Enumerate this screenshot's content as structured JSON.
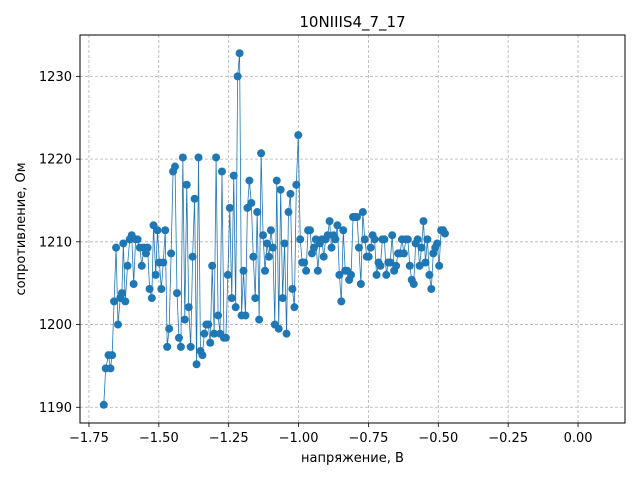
{
  "chart_data": {
    "type": "line",
    "title": "10NIIIS4_7_17",
    "xlabel": "напряжение, В",
    "ylabel": "сопротивление, Ом",
    "xlim": [
      -1.782,
      0.168
    ],
    "ylim": [
      1188.1,
      1235.0
    ],
    "xticks": [
      -1.75,
      -1.5,
      -1.25,
      -1.0,
      -0.75,
      -0.5,
      -0.25,
      0.0
    ],
    "xtick_labels": [
      "−1.75",
      "−1.50",
      "−1.25",
      "−1.00",
      "−0.75",
      "−0.50",
      "−0.25",
      "0.00"
    ],
    "yticks": [
      1190,
      1200,
      1210,
      1220,
      1230
    ],
    "ytick_labels": [
      "1190",
      "1200",
      "1210",
      "1220",
      "1230"
    ],
    "grid": true,
    "series": [
      {
        "color": "#1f77b4",
        "marker": "circle",
        "points": [
          [
            -1.697,
            1190.3
          ],
          [
            -1.69,
            1194.7
          ],
          [
            -1.68,
            1196.3
          ],
          [
            -1.673,
            1194.7
          ],
          [
            -1.667,
            1196.3
          ],
          [
            -1.66,
            1202.8
          ],
          [
            -1.653,
            1209.3
          ],
          [
            -1.646,
            1200.0
          ],
          [
            -1.638,
            1203.2
          ],
          [
            -1.632,
            1203.8
          ],
          [
            -1.627,
            1209.8
          ],
          [
            -1.62,
            1202.8
          ],
          [
            -1.612,
            1207.1
          ],
          [
            -1.604,
            1210.3
          ],
          [
            -1.597,
            1210.8
          ],
          [
            -1.59,
            1204.9
          ],
          [
            -1.583,
            1210.3
          ],
          [
            -1.576,
            1210.3
          ],
          [
            -1.568,
            1209.3
          ],
          [
            -1.561,
            1207.1
          ],
          [
            -1.554,
            1209.3
          ],
          [
            -1.546,
            1208.6
          ],
          [
            -1.54,
            1209.3
          ],
          [
            -1.533,
            1204.3
          ],
          [
            -1.525,
            1203.2
          ],
          [
            -1.519,
            1212.0
          ],
          [
            -1.511,
            1206.0
          ],
          [
            -1.505,
            1211.4
          ],
          [
            -1.498,
            1207.5
          ],
          [
            -1.491,
            1204.3
          ],
          [
            -1.484,
            1207.5
          ],
          [
            -1.477,
            1211.4
          ],
          [
            -1.47,
            1197.3
          ],
          [
            -1.463,
            1199.5
          ],
          [
            -1.456,
            1208.6
          ],
          [
            -1.449,
            1218.5
          ],
          [
            -1.442,
            1219.1
          ],
          [
            -1.435,
            1203.8
          ],
          [
            -1.428,
            1198.4
          ],
          [
            -1.421,
            1197.3
          ],
          [
            -1.414,
            1220.2
          ],
          [
            -1.407,
            1200.6
          ],
          [
            -1.4,
            1216.9
          ],
          [
            -1.393,
            1202.1
          ],
          [
            -1.386,
            1197.3
          ],
          [
            -1.379,
            1208.2
          ],
          [
            -1.372,
            1215.2
          ],
          [
            -1.365,
            1195.2
          ],
          [
            -1.358,
            1220.2
          ],
          [
            -1.351,
            1196.8
          ],
          [
            -1.344,
            1196.3
          ],
          [
            -1.337,
            1198.9
          ],
          [
            -1.33,
            1200.0
          ],
          [
            -1.323,
            1200.0
          ],
          [
            -1.316,
            1197.8
          ],
          [
            -1.309,
            1207.1
          ],
          [
            -1.302,
            1198.9
          ],
          [
            -1.295,
            1220.2
          ],
          [
            -1.288,
            1201.1
          ],
          [
            -1.281,
            1198.9
          ],
          [
            -1.274,
            1218.5
          ],
          [
            -1.267,
            1198.4
          ],
          [
            -1.26,
            1198.4
          ],
          [
            -1.253,
            1206.0
          ],
          [
            -1.246,
            1214.1
          ],
          [
            -1.239,
            1203.2
          ],
          [
            -1.232,
            1218.0
          ],
          [
            -1.225,
            1202.1
          ],
          [
            -1.218,
            1230.0
          ],
          [
            -1.211,
            1232.8
          ],
          [
            -1.204,
            1201.1
          ],
          [
            -1.197,
            1206.5
          ],
          [
            -1.19,
            1201.1
          ],
          [
            -1.183,
            1214.1
          ],
          [
            -1.176,
            1217.4
          ],
          [
            -1.169,
            1214.7
          ],
          [
            -1.162,
            1208.2
          ],
          [
            -1.155,
            1203.2
          ],
          [
            -1.148,
            1213.6
          ],
          [
            -1.141,
            1200.6
          ],
          [
            -1.134,
            1220.7
          ],
          [
            -1.127,
            1210.8
          ],
          [
            -1.12,
            1206.5
          ],
          [
            -1.113,
            1209.8
          ],
          [
            -1.106,
            1208.2
          ],
          [
            -1.099,
            1211.4
          ],
          [
            -1.092,
            1209.3
          ],
          [
            -1.085,
            1200.0
          ],
          [
            -1.078,
            1217.4
          ],
          [
            -1.071,
            1199.5
          ],
          [
            -1.064,
            1216.3
          ],
          [
            -1.057,
            1203.2
          ],
          [
            -1.05,
            1209.8
          ],
          [
            -1.043,
            1198.9
          ],
          [
            -1.036,
            1213.6
          ],
          [
            -1.029,
            1215.8
          ],
          [
            -1.022,
            1204.3
          ],
          [
            -1.015,
            1202.1
          ],
          [
            -1.008,
            1216.9
          ],
          [
            -1.001,
            1222.9
          ],
          [
            -0.994,
            1210.3
          ],
          [
            -0.987,
            1207.5
          ],
          [
            -0.98,
            1207.5
          ],
          [
            -0.973,
            1206.5
          ],
          [
            -0.966,
            1211.4
          ],
          [
            -0.959,
            1211.4
          ],
          [
            -0.952,
            1208.6
          ],
          [
            -0.945,
            1209.3
          ],
          [
            -0.938,
            1210.3
          ],
          [
            -0.931,
            1206.5
          ],
          [
            -0.924,
            1209.8
          ],
          [
            -0.917,
            1210.3
          ],
          [
            -0.91,
            1208.2
          ],
          [
            -0.903,
            1210.3
          ],
          [
            -0.896,
            1210.8
          ],
          [
            -0.889,
            1212.5
          ],
          [
            -0.882,
            1209.3
          ],
          [
            -0.875,
            1210.8
          ],
          [
            -0.868,
            1210.3
          ],
          [
            -0.861,
            1212.0
          ],
          [
            -0.854,
            1206.0
          ],
          [
            -0.847,
            1202.8
          ],
          [
            -0.84,
            1211.4
          ],
          [
            -0.833,
            1206.5
          ],
          [
            -0.826,
            1206.5
          ],
          [
            -0.819,
            1205.4
          ],
          [
            -0.812,
            1206.0
          ],
          [
            -0.805,
            1213.0
          ],
          [
            -0.798,
            1213.0
          ],
          [
            -0.791,
            1213.0
          ],
          [
            -0.784,
            1209.3
          ],
          [
            -0.777,
            1204.9
          ],
          [
            -0.77,
            1213.6
          ],
          [
            -0.763,
            1210.3
          ],
          [
            -0.756,
            1208.2
          ],
          [
            -0.749,
            1208.2
          ],
          [
            -0.742,
            1209.3
          ],
          [
            -0.735,
            1210.8
          ],
          [
            -0.728,
            1210.3
          ],
          [
            -0.721,
            1206.0
          ],
          [
            -0.714,
            1207.5
          ],
          [
            -0.707,
            1207.1
          ],
          [
            -0.7,
            1210.3
          ],
          [
            -0.693,
            1210.3
          ],
          [
            -0.686,
            1206.0
          ],
          [
            -0.679,
            1207.5
          ],
          [
            -0.672,
            1207.5
          ],
          [
            -0.665,
            1210.8
          ],
          [
            -0.658,
            1206.5
          ],
          [
            -0.651,
            1207.1
          ],
          [
            -0.644,
            1208.6
          ],
          [
            -0.637,
            1208.6
          ],
          [
            -0.63,
            1210.3
          ],
          [
            -0.623,
            1208.6
          ],
          [
            -0.616,
            1210.3
          ],
          [
            -0.609,
            1210.3
          ],
          [
            -0.602,
            1207.1
          ],
          [
            -0.595,
            1205.4
          ],
          [
            -0.588,
            1204.9
          ],
          [
            -0.581,
            1209.8
          ],
          [
            -0.574,
            1210.3
          ],
          [
            -0.567,
            1207.1
          ],
          [
            -0.56,
            1209.3
          ],
          [
            -0.553,
            1212.5
          ],
          [
            -0.546,
            1207.5
          ],
          [
            -0.539,
            1210.3
          ],
          [
            -0.532,
            1206.0
          ],
          [
            -0.525,
            1204.3
          ],
          [
            -0.518,
            1208.6
          ],
          [
            -0.511,
            1209.3
          ],
          [
            -0.504,
            1209.8
          ],
          [
            -0.497,
            1207.1
          ],
          [
            -0.49,
            1211.4
          ],
          [
            -0.483,
            1211.4
          ],
          [
            -0.476,
            1211.0
          ]
        ]
      }
    ]
  }
}
